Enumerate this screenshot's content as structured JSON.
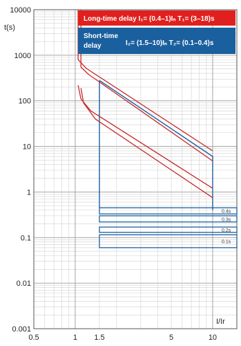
{
  "chart_data": {
    "type": "line",
    "x_scale": "log",
    "y_scale": "log",
    "xlim": [
      0.5,
      15
    ],
    "ylim": [
      0.001,
      10000
    ],
    "grid": true,
    "xlabel": "I/Ir",
    "ylabel": "t(s)",
    "x_tick_labels": [
      {
        "value": 0.5,
        "label": "0.5"
      },
      {
        "value": 1,
        "label": "1"
      },
      {
        "value": 1.5,
        "label": "1.5"
      },
      {
        "value": 5,
        "label": "5"
      },
      {
        "value": 10,
        "label": "10"
      }
    ],
    "y_tick_labels": [
      {
        "value": 10000,
        "label": "10000"
      },
      {
        "value": 1000,
        "label": "1000"
      },
      {
        "value": 100,
        "label": "100"
      },
      {
        "value": 10,
        "label": "10"
      },
      {
        "value": 1,
        "label": "1"
      },
      {
        "value": 0.1,
        "label": "0.1"
      },
      {
        "value": 0.01,
        "label": "0.01"
      },
      {
        "value": 0.001,
        "label": "0.001"
      }
    ],
    "legend": [
      {
        "position": "top-right",
        "color": "#e0201e",
        "text_color": "#ffffff",
        "text": "Long-time delay  I₁= (0.4–1)Iₙ  T₁= (3–18)s"
      },
      {
        "position": "top-right",
        "color": "#1a5f9e",
        "text_color": "#ffffff",
        "text_line1": "Short-time",
        "text_line2": "delay",
        "text_params": "I₂= (1.5–10)Iₙ  T₂= (0.1–0.4)s"
      }
    ],
    "series": [
      {
        "color": "#c8282a",
        "points": [
          [
            1.05,
            10000
          ],
          [
            1.05,
            800
          ],
          [
            1.2,
            520
          ],
          [
            10,
            8
          ]
        ]
      },
      {
        "color": "#c8282a",
        "points": [
          [
            1.1,
            10000
          ],
          [
            1.1,
            550
          ],
          [
            1.25,
            380
          ],
          [
            10,
            4.8
          ]
        ]
      },
      {
        "color": "#c8282a",
        "points": [
          [
            1.05,
            220
          ],
          [
            1.1,
            110
          ],
          [
            1.3,
            60
          ],
          [
            10,
            1.2
          ]
        ]
      },
      {
        "color": "#c8282a",
        "points": [
          [
            1.1,
            190
          ],
          [
            1.15,
            90
          ],
          [
            1.4,
            40
          ],
          [
            10,
            0.75
          ]
        ]
      }
    ],
    "short_time_region": {
      "color": "#1a5f9e",
      "x_range": [
        1.5,
        10
      ],
      "top_left_t": 280,
      "top_right_t": 6,
      "right_top_t": 6,
      "right_bottom_t": 0.4
    },
    "short_time_bands": {
      "color": "#1a5f9e",
      "x_range": [
        1.5,
        15
      ],
      "levels": [
        {
          "label": "0.4s",
          "upper": 0.45,
          "lower": 0.33
        },
        {
          "label": "0.3s",
          "upper": 0.3,
          "lower": 0.22
        },
        {
          "label": "0.2s",
          "upper": 0.17,
          "lower": 0.13
        },
        {
          "label": "0.1s",
          "upper": 0.115,
          "lower": 0.06
        }
      ]
    }
  }
}
